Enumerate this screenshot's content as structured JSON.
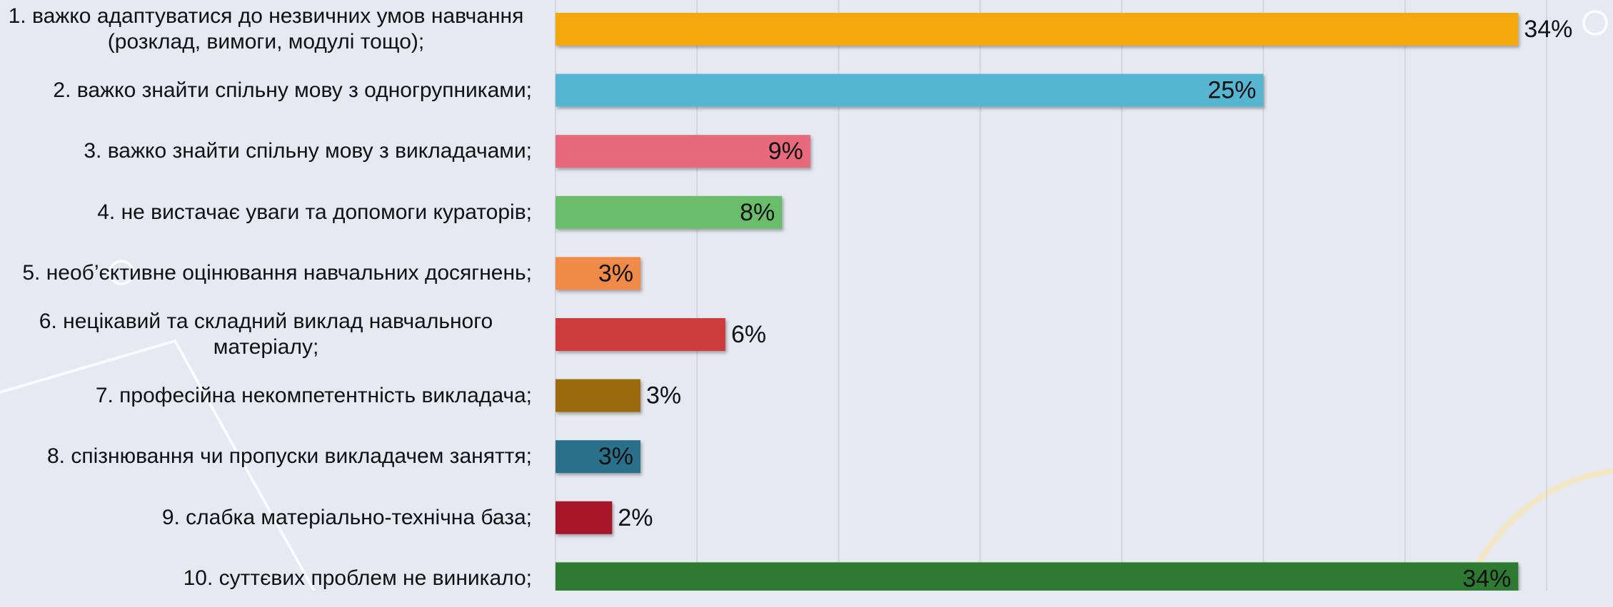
{
  "chart_data": {
    "type": "bar",
    "orientation": "horizontal",
    "categories": [
      "1. важко адаптуватися до незвичних умов навчання (розклад, вимоги, модулі тощо);",
      "2. важко знайти спільну мову з одногрупниками;",
      "3. важко знайти спільну мову з викладачами;",
      "4. не вистачає уваги та допомоги кураторів;",
      "5. необ’єктивне оцінювання навчальних досягнень;",
      "6. нецікавий та складний виклад навчального матеріалу;",
      "7. професійна некомпетентність викладача;",
      "8. спізнювання чи пропуски викладачем заняття;",
      "9. слабка матеріально-технічна база;",
      "10. суттєвих проблем не виникало;"
    ],
    "values": [
      34,
      25,
      9,
      8,
      3,
      6,
      3,
      3,
      2,
      34
    ],
    "value_labels": [
      "34%",
      "25%",
      "9%",
      "8%",
      "3%",
      "6%",
      "3%",
      "3%",
      "2%",
      "34%"
    ],
    "colors": [
      "#f3a90a",
      "#56b6d1",
      "#e8677c",
      "#6abd6a",
      "#ef8a4a",
      "#cd3d3d",
      "#9b6b10",
      "#2b6f8b",
      "#a8192b",
      "#2f7a33"
    ],
    "xlim": [
      0,
      35
    ],
    "xticks": [
      0,
      5,
      10,
      15,
      20,
      25,
      30,
      35
    ],
    "grid": true,
    "tick_labels": false
  }
}
